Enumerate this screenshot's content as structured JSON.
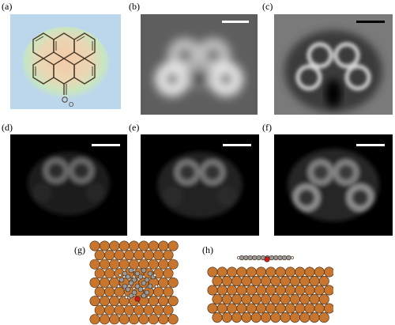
{
  "figure": {
    "panels": [
      {
        "id": "a",
        "label": "(a)",
        "content": "molecule-structure-diagram"
      },
      {
        "id": "b",
        "label": "(b)",
        "content": "afm-image"
      },
      {
        "id": "c",
        "label": "(c)",
        "content": "afm-image"
      },
      {
        "id": "d",
        "label": "(d)",
        "content": "simulated-afm-image"
      },
      {
        "id": "e",
        "label": "(e)",
        "content": "simulated-afm-image"
      },
      {
        "id": "f",
        "label": "(f)",
        "content": "simulated-afm-image"
      },
      {
        "id": "g",
        "label": "(g)",
        "content": "top-view-adsorption-model"
      },
      {
        "id": "h",
        "label": "(h)",
        "content": "side-view-adsorption-model"
      }
    ],
    "molecule": {
      "heteroatom_label": "O"
    },
    "colors": {
      "copper_atom": "#c8762e",
      "carbon_atom": "#9a9a9a",
      "oxygen_atom": "#d61a1a",
      "hydrogen_atom": "#f2f2f2",
      "panel_a_background": "#bcd7ec",
      "scalebar_white": "#ffffff",
      "scalebar_black": "#000000"
    }
  }
}
